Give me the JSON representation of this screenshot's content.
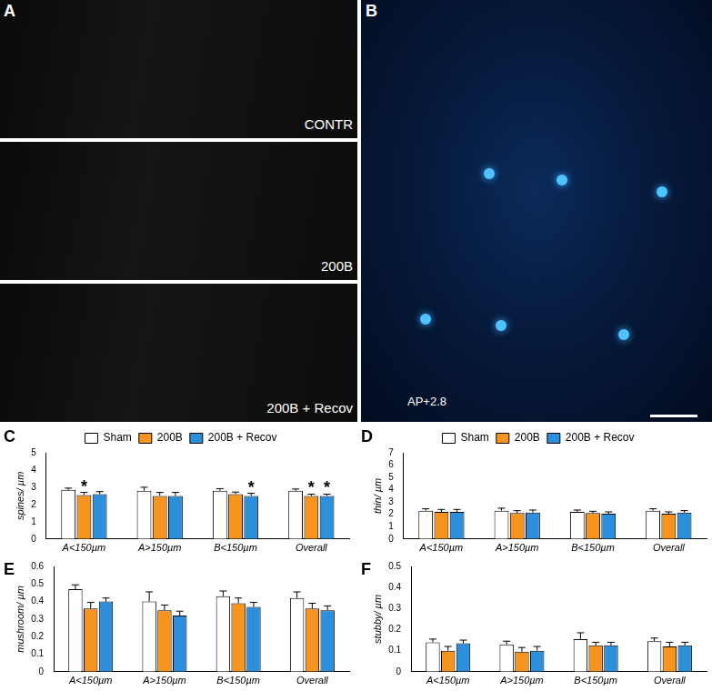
{
  "images": [
    {
      "panel": "A",
      "labels": [
        "CONTR",
        "200B",
        "200B + Recov"
      ]
    },
    {
      "panel": "B",
      "label": "AP+2.8"
    }
  ],
  "chart_data": [
    {
      "panel": "C",
      "type": "bar",
      "categories": [
        "A<150µm",
        "A>150µm",
        "B<150µm",
        "Overall"
      ],
      "y_label": "spines/ µm",
      "ylim": [
        0,
        5
      ],
      "yticks": [
        0,
        1,
        2,
        3,
        4,
        5
      ],
      "grid": false,
      "legend": "top",
      "series": [
        {
          "name": "Sham",
          "color": "#ffffff",
          "values": [
            2.85,
            2.8,
            2.8,
            2.8
          ],
          "errors": [
            0.1,
            0.2,
            0.12,
            0.1
          ],
          "annotations": [
            null,
            null,
            null,
            null
          ]
        },
        {
          "name": "200B",
          "color": "#f7941d",
          "values": [
            2.55,
            2.5,
            2.6,
            2.5
          ],
          "errors": [
            0.15,
            0.2,
            0.12,
            0.1
          ],
          "annotations": [
            "*",
            null,
            null,
            "*"
          ]
        },
        {
          "name": "200B + Recov",
          "color": "#2b8fdc",
          "values": [
            2.6,
            2.5,
            2.5,
            2.5
          ],
          "errors": [
            0.15,
            0.2,
            0.15,
            0.1
          ],
          "annotations": [
            null,
            null,
            "*",
            "*"
          ]
        }
      ]
    },
    {
      "panel": "D",
      "type": "bar",
      "categories": [
        "A<150µm",
        "A>150µm",
        "B<150µm",
        "Overall"
      ],
      "y_label": "thin/ µm",
      "ylim": [
        0,
        7
      ],
      "yticks": [
        0,
        1,
        2,
        3,
        4,
        5,
        6,
        7
      ],
      "grid": false,
      "legend": "top",
      "series": [
        {
          "name": "Sham",
          "color": "#ffffff",
          "values": [
            2.3,
            2.3,
            2.2,
            2.3
          ],
          "errors": [
            0.15,
            0.2,
            0.15,
            0.15
          ]
        },
        {
          "name": "200B",
          "color": "#f7941d",
          "values": [
            2.2,
            2.1,
            2.1,
            2.05
          ],
          "errors": [
            0.2,
            0.2,
            0.15,
            0.15
          ]
        },
        {
          "name": "200B + Recov",
          "color": "#2b8fdc",
          "values": [
            2.2,
            2.15,
            2.05,
            2.15
          ],
          "errors": [
            0.2,
            0.2,
            0.15,
            0.15
          ]
        }
      ]
    },
    {
      "panel": "E",
      "type": "bar",
      "categories": [
        "A<150µm",
        "A>150µm",
        "B<150µm",
        "Overall"
      ],
      "y_label": "mushroom/ µm",
      "ylim": [
        0,
        0.6
      ],
      "yticks": [
        0,
        0.1,
        0.2,
        0.3,
        0.4,
        0.5,
        0.6
      ],
      "grid": false,
      "series": [
        {
          "name": "Sham",
          "color": "#ffffff",
          "values": [
            0.47,
            0.4,
            0.43,
            0.42
          ],
          "errors": [
            0.025,
            0.055,
            0.03,
            0.035
          ]
        },
        {
          "name": "200B",
          "color": "#f7941d",
          "values": [
            0.36,
            0.35,
            0.39,
            0.36
          ],
          "errors": [
            0.035,
            0.03,
            0.03,
            0.03
          ]
        },
        {
          "name": "200B + Recov",
          "color": "#2b8fdc",
          "values": [
            0.4,
            0.32,
            0.37,
            0.35
          ],
          "errors": [
            0.02,
            0.025,
            0.025,
            0.025
          ]
        }
      ]
    },
    {
      "panel": "F",
      "type": "bar",
      "categories": [
        "A<150µm",
        "A>150µm",
        "B<150µm",
        "Overall"
      ],
      "y_label": "stubby/ µm",
      "ylim": [
        0,
        0.5
      ],
      "yticks": [
        0,
        0.1,
        0.2,
        0.3,
        0.4,
        0.5
      ],
      "grid": false,
      "series": [
        {
          "name": "Sham",
          "color": "#ffffff",
          "values": [
            0.14,
            0.13,
            0.155,
            0.145
          ],
          "errors": [
            0.015,
            0.015,
            0.03,
            0.015
          ]
        },
        {
          "name": "200B",
          "color": "#f7941d",
          "values": [
            0.1,
            0.095,
            0.125,
            0.12
          ],
          "errors": [
            0.02,
            0.02,
            0.015,
            0.02
          ]
        },
        {
          "name": "200B + Recov",
          "color": "#2b8fdc",
          "values": [
            0.135,
            0.1,
            0.125,
            0.125
          ],
          "errors": [
            0.015,
            0.02,
            0.015,
            0.015
          ]
        }
      ]
    }
  ]
}
